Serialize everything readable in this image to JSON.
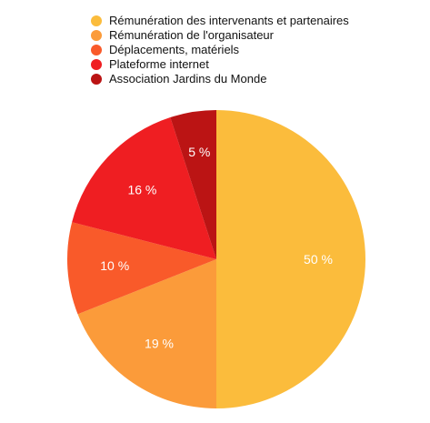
{
  "chart_data": {
    "type": "pie",
    "categories": [
      "Rémunération des intervenants et partenaires",
      "Rémunération de l'organisateur",
      "Déplacements, matériels",
      "Plateforme internet",
      "Association Jardins du Monde"
    ],
    "values": [
      50,
      19,
      10,
      16,
      5
    ],
    "value_labels": [
      "50 %",
      "19 %",
      "10 %",
      "16 %",
      "5 %"
    ],
    "colors": [
      "#fbbc3c",
      "#fb9b3a",
      "#f95a2a",
      "#ef1e22",
      "#bb1414"
    ],
    "legend": "top",
    "start_angle": "12 o'clock",
    "direction": "clockwise"
  }
}
